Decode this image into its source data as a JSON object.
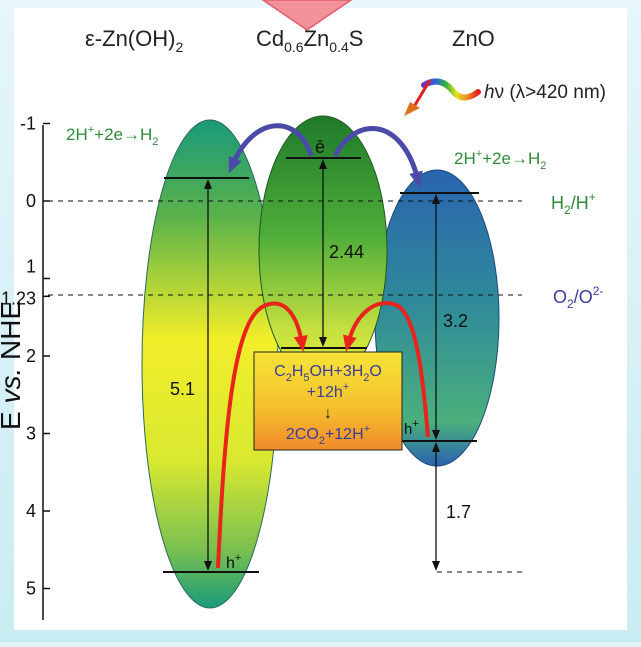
{
  "materials": {
    "zn_oh2": {
      "prefix": "ε-Zn(OH)",
      "sub": "2"
    },
    "cdzns": {
      "cd": "Cd",
      "cd_sub": "0.6",
      "zn": "Zn",
      "zn_sub": "0.4",
      "s": "S"
    },
    "zno": {
      "label": "ZnO"
    }
  },
  "light": {
    "h": "h",
    "nu": "ν",
    "rest": " (λ>420 nm)"
  },
  "axis": {
    "label_e": "E ",
    "label_vs": "vs.",
    "label_nhe": " NHE",
    "ticks": [
      "-1",
      "0",
      "1",
      "1.23",
      "2",
      "3",
      "4",
      "5"
    ]
  },
  "reactions": {
    "left_h2": {
      "a": "2H",
      "sup": "+",
      "b": "+2e",
      "arrow": "→",
      "c": "H",
      "sub": "2"
    },
    "right_h2": {
      "a": "2H",
      "sup": "+",
      "b": "+2e",
      "arrow": "→",
      "c": "H",
      "sub": "2"
    }
  },
  "redox_levels": {
    "h2": {
      "a": "H",
      "sub": "2",
      "slash": "/H",
      "sup": "+"
    },
    "o2": {
      "a": "O",
      "sub": "2",
      "slash": "/O",
      "sup": "2-"
    }
  },
  "gaps": {
    "zn_oh2": "5.1",
    "cdzns": "2.44",
    "zno": "3.2",
    "offset": "1.7"
  },
  "carriers": {
    "electron": "ē",
    "hole": "h",
    "hole_sup": "+"
  },
  "box": {
    "line1": {
      "a": "C",
      "s1": "2",
      "b": "H",
      "s2": "5",
      "c": "OH+3H",
      "s3": "2",
      "d": "O"
    },
    "line2": {
      "a": "+12h",
      "sup": "+"
    },
    "arrow": "↓",
    "line3": {
      "a": "2CO",
      "sub": "2",
      "b": "+12H",
      "sup": "+"
    }
  },
  "colors": {
    "green_text": "#2e8b3a",
    "blue_text": "#3c3c9c",
    "arrow_blue": "#4a4aa8",
    "arrow_red": "#e8241c",
    "box_yellow": "#f6e436",
    "box_orange": "#f08a2a"
  }
}
